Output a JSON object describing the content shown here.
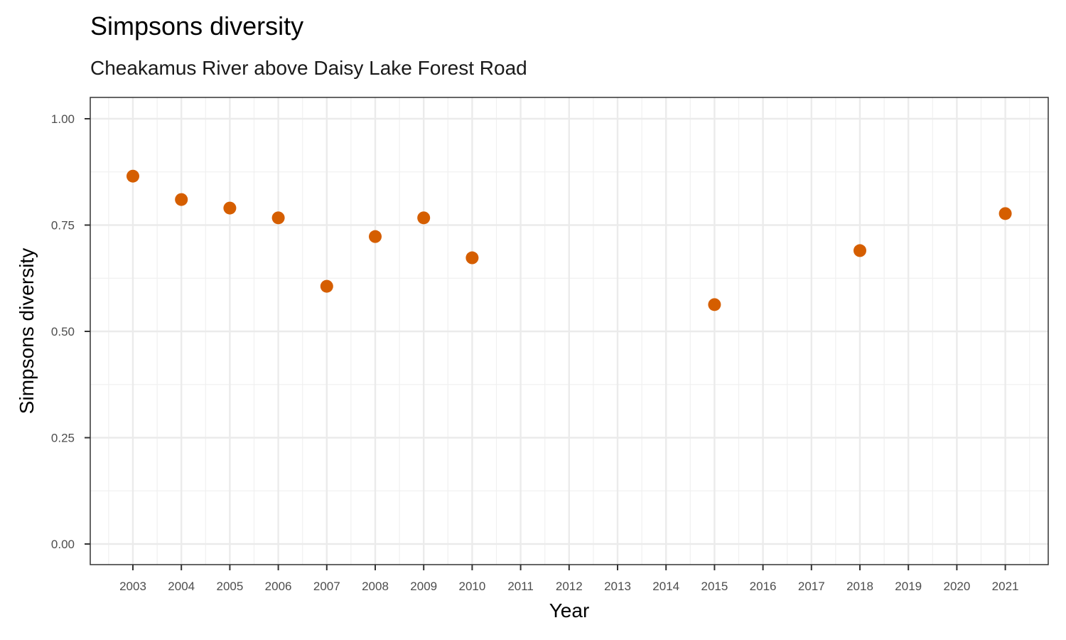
{
  "chart_data": {
    "type": "scatter",
    "title": "Simpsons diversity",
    "subtitle": "Cheakamus River above Daisy Lake Forest Road",
    "xlabel": "Year",
    "ylabel": "Simpsons diversity",
    "x_ticks": [
      "2003",
      "2004",
      "2005",
      "2006",
      "2007",
      "2008",
      "2009",
      "2010",
      "2011",
      "2012",
      "2013",
      "2014",
      "2015",
      "2016",
      "2017",
      "2018",
      "2019",
      "2020",
      "2021"
    ],
    "y_ticks": [
      0.0,
      0.25,
      0.5,
      0.75,
      1.0
    ],
    "y_tick_labels": [
      "0.00",
      "0.25",
      "0.50",
      "0.75",
      "1.00"
    ],
    "ylim": [
      0,
      1
    ],
    "grid": true,
    "point_color": "#D55E00",
    "series": [
      {
        "x": [
          2003,
          2004,
          2005,
          2006,
          2007,
          2008,
          2009,
          2010,
          2015,
          2018,
          2021
        ],
        "y": [
          0.865,
          0.81,
          0.79,
          0.767,
          0.606,
          0.723,
          0.767,
          0.673,
          0.563,
          0.69,
          0.777
        ]
      }
    ]
  }
}
